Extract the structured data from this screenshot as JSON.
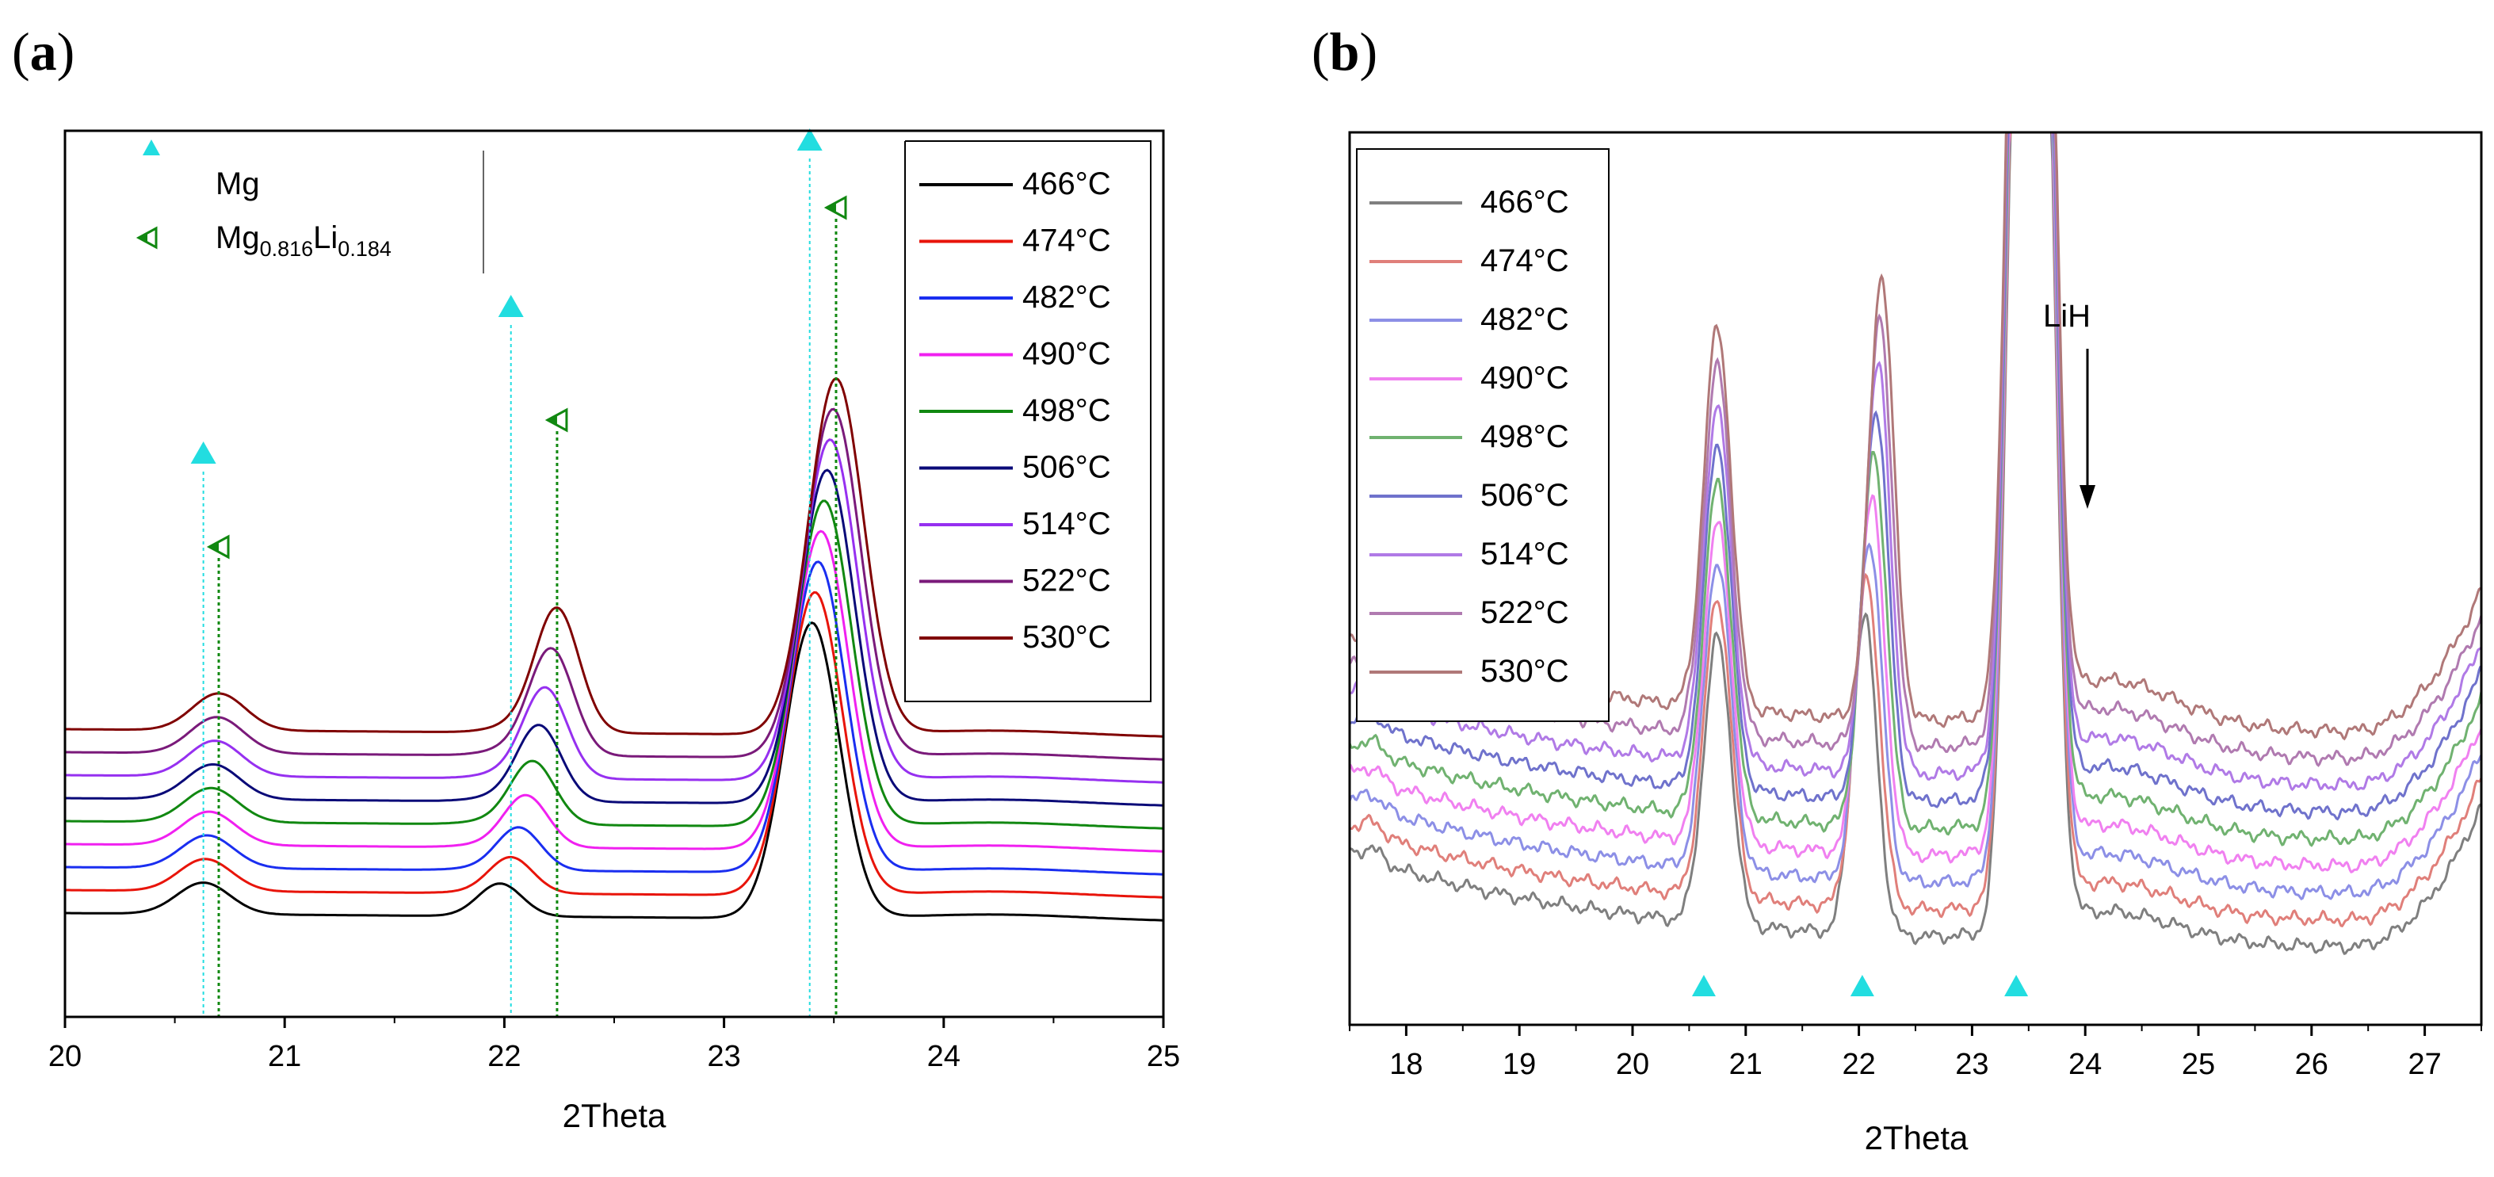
{
  "figure": {
    "panel_a_label_open": "(",
    "panel_a_label_letter": "a",
    "panel_a_label_close": ")",
    "panel_b_label_open": "(",
    "panel_b_label_letter": "b",
    "panel_b_label_close": ")"
  },
  "chart_data": [
    {
      "panel": "a",
      "type": "line",
      "xlabel": "2Theta",
      "ylabel": "",
      "xlim": [
        20,
        25
      ],
      "xticks": [
        "20",
        "21",
        "22",
        "23",
        "24",
        "25"
      ],
      "yticks": [],
      "legend_location": "top-right",
      "series_names": [
        "466°C",
        "474°C",
        "482°C",
        "490°C",
        "498°C",
        "506°C",
        "514°C",
        "522°C",
        "530°C"
      ],
      "series_colors": [
        "#000000",
        "#e8140a",
        "#1a2ef0",
        "#f020f0",
        "#118811",
        "#0a0a78",
        "#9630f0",
        "#7a1a7a",
        "#800000"
      ],
      "peaks": [
        {
          "center": [
            20.63,
            20.7
          ],
          "heights": [
            0.115,
            0.135
          ]
        },
        {
          "center": [
            21.98,
            22.24
          ],
          "heights": [
            0.12,
            0.45
          ]
        },
        {
          "center": [
            23.4,
            23.51
          ],
          "heights": [
            1.08,
            1.3
          ]
        }
      ],
      "markers": {
        "mg_positions": [
          20.63,
          22.03,
          23.39
        ],
        "mgli_positions": [
          20.7,
          22.24,
          23.51
        ]
      },
      "marker_legend": {
        "mg_label": "Mg",
        "mgli_base": "Mg",
        "mgli_sub1": "0.816",
        "mgli_mid": "Li",
        "mgli_sub2": "0.184"
      }
    },
    {
      "panel": "b",
      "type": "line",
      "xlabel": "2Theta",
      "ylabel": "",
      "xlim": [
        17.5,
        27.5
      ],
      "xticks": [
        "18",
        "19",
        "20",
        "21",
        "22",
        "23",
        "24",
        "25",
        "26",
        "27"
      ],
      "yticks": [],
      "legend_location": "top-left",
      "series_names": [
        "466°C",
        "474°C",
        "482°C",
        "490°C",
        "498°C",
        "506°C",
        "514°C",
        "522°C",
        "530°C"
      ],
      "series_colors": [
        "#7f7f7f",
        "#e07f7a",
        "#8c8fe6",
        "#f080f0",
        "#70b270",
        "#6f72cc",
        "#b07ae6",
        "#b07ab0",
        "#b07878"
      ],
      "peaks": [
        {
          "center": 20.75,
          "heights": [
            0.9,
            1.2
          ]
        },
        {
          "center": 22.1,
          "heights": [
            1.0,
            1.15
          ]
        },
        {
          "center": 23.5,
          "heights": [
            3.0,
            3.0
          ]
        }
      ],
      "markers": {
        "mg_positions": [
          20.63,
          22.03,
          23.39
        ]
      },
      "annotation": {
        "text": "LiH",
        "x": 24.15
      }
    }
  ]
}
